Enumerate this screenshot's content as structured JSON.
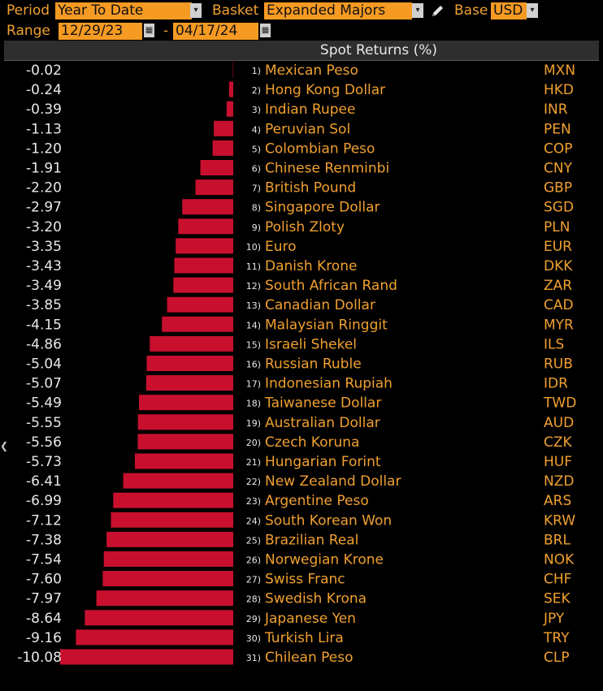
{
  "toolbar": {
    "period_label": "Period",
    "period_value": "Year To Date",
    "basket_label": "Basket",
    "basket_value": "Expanded Majors",
    "base_label": "Base",
    "base_value": "USD",
    "range_label": "Range",
    "range_start": "12/29/23",
    "range_sep": "-",
    "range_end": "04/17/24",
    "dropdown_glyph": "▾",
    "calendar_glyph": "▦"
  },
  "colors": {
    "bar": "#c8102e",
    "accent": "#f59a23",
    "header_bg": "#2e2e2e"
  },
  "chart_data": {
    "type": "bar",
    "orientation": "horizontal",
    "title": "Spot Returns (%)",
    "xlim": [
      -10.08,
      0
    ],
    "rows": [
      {
        "rank": "1)",
        "name": "Mexican Peso",
        "code": "MXN",
        "value": -0.02,
        "label": "-0.02"
      },
      {
        "rank": "2)",
        "name": "Hong Kong Dollar",
        "code": "HKD",
        "value": -0.24,
        "label": "-0.24"
      },
      {
        "rank": "3)",
        "name": "Indian Rupee",
        "code": "INR",
        "value": -0.39,
        "label": "-0.39"
      },
      {
        "rank": "4)",
        "name": "Peruvian Sol",
        "code": "PEN",
        "value": -1.13,
        "label": "-1.13"
      },
      {
        "rank": "5)",
        "name": "Colombian Peso",
        "code": "COP",
        "value": -1.2,
        "label": "-1.20"
      },
      {
        "rank": "6)",
        "name": "Chinese Renminbi",
        "code": "CNY",
        "value": -1.91,
        "label": "-1.91"
      },
      {
        "rank": "7)",
        "name": "British Pound",
        "code": "GBP",
        "value": -2.2,
        "label": "-2.20"
      },
      {
        "rank": "8)",
        "name": "Singapore Dollar",
        "code": "SGD",
        "value": -2.97,
        "label": "-2.97"
      },
      {
        "rank": "9)",
        "name": "Polish Zloty",
        "code": "PLN",
        "value": -3.2,
        "label": "-3.20"
      },
      {
        "rank": "10)",
        "name": "Euro",
        "code": "EUR",
        "value": -3.35,
        "label": "-3.35"
      },
      {
        "rank": "11)",
        "name": "Danish Krone",
        "code": "DKK",
        "value": -3.43,
        "label": "-3.43"
      },
      {
        "rank": "12)",
        "name": "South African Rand",
        "code": "ZAR",
        "value": -3.49,
        "label": "-3.49"
      },
      {
        "rank": "13)",
        "name": "Canadian Dollar",
        "code": "CAD",
        "value": -3.85,
        "label": "-3.85"
      },
      {
        "rank": "14)",
        "name": "Malaysian Ringgit",
        "code": "MYR",
        "value": -4.15,
        "label": "-4.15"
      },
      {
        "rank": "15)",
        "name": "Israeli Shekel",
        "code": "ILS",
        "value": -4.86,
        "label": "-4.86"
      },
      {
        "rank": "16)",
        "name": "Russian Ruble",
        "code": "RUB",
        "value": -5.04,
        "label": "-5.04"
      },
      {
        "rank": "17)",
        "name": "Indonesian Rupiah",
        "code": "IDR",
        "value": -5.07,
        "label": "-5.07"
      },
      {
        "rank": "18)",
        "name": "Taiwanese Dollar",
        "code": "TWD",
        "value": -5.49,
        "label": "-5.49"
      },
      {
        "rank": "19)",
        "name": "Australian Dollar",
        "code": "AUD",
        "value": -5.55,
        "label": "-5.55"
      },
      {
        "rank": "20)",
        "name": "Czech Koruna",
        "code": "CZK",
        "value": -5.56,
        "label": "-5.56"
      },
      {
        "rank": "21)",
        "name": "Hungarian Forint",
        "code": "HUF",
        "value": -5.73,
        "label": "-5.73"
      },
      {
        "rank": "22)",
        "name": "New Zealand Dollar",
        "code": "NZD",
        "value": -6.41,
        "label": "-6.41"
      },
      {
        "rank": "23)",
        "name": "Argentine Peso",
        "code": "ARS",
        "value": -6.99,
        "label": "-6.99"
      },
      {
        "rank": "24)",
        "name": "South Korean Won",
        "code": "KRW",
        "value": -7.12,
        "label": "-7.12"
      },
      {
        "rank": "25)",
        "name": "Brazilian Real",
        "code": "BRL",
        "value": -7.38,
        "label": "-7.38"
      },
      {
        "rank": "26)",
        "name": "Norwegian Krone",
        "code": "NOK",
        "value": -7.54,
        "label": "-7.54"
      },
      {
        "rank": "27)",
        "name": "Swiss Franc",
        "code": "CHF",
        "value": -7.6,
        "label": "-7.60"
      },
      {
        "rank": "28)",
        "name": "Swedish Krona",
        "code": "SEK",
        "value": -7.97,
        "label": "-7.97"
      },
      {
        "rank": "29)",
        "name": "Japanese Yen",
        "code": "JPY",
        "value": -8.64,
        "label": "-8.64"
      },
      {
        "rank": "30)",
        "name": "Turkish Lira",
        "code": "TRY",
        "value": -9.16,
        "label": "-9.16"
      },
      {
        "rank": "31)",
        "name": "Chilean Peso",
        "code": "CLP",
        "value": -10.08,
        "label": "-10.08"
      }
    ]
  }
}
